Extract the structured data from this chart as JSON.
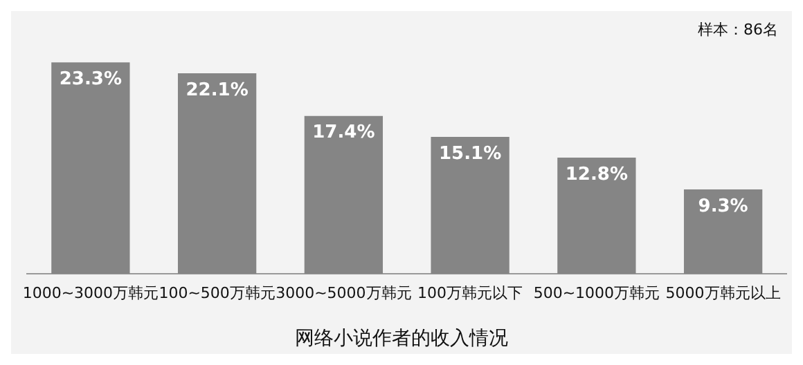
{
  "chart_data": {
    "type": "bar",
    "title": "网络小说作者的收入情况",
    "annotations": [
      "样本：86名"
    ],
    "categories": [
      "1000~3000万韩元",
      "100~500万韩元",
      "3000~5000万韩元",
      "100万韩元以下",
      "500~1000万韩元",
      "5000万韩元以上"
    ],
    "values": [
      23.3,
      22.1,
      17.4,
      15.1,
      12.8,
      9.3
    ],
    "value_labels": [
      "23.3%",
      "22.1%",
      "17.4%",
      "15.1%",
      "12.8%",
      "9.3%"
    ],
    "color": "#858585",
    "grid": false,
    "legend": false
  }
}
